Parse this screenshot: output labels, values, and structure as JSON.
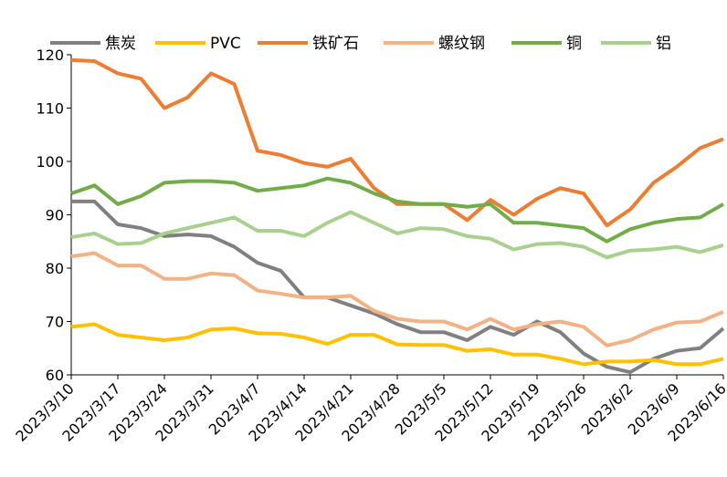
{
  "chart_data": {
    "type": "line",
    "categories": [
      "2023/3/10",
      null,
      "2023/3/17",
      null,
      "2023/3/24",
      null,
      "2023/3/31",
      null,
      "2023/4/7",
      null,
      "2023/4/14",
      null,
      "2023/4/21",
      null,
      "2023/4/28",
      null,
      "2023/5/5",
      null,
      "2023/5/12",
      null,
      "2023/5/19",
      null,
      "2023/5/26",
      null,
      "2023/6/2",
      null,
      "2023/6/9",
      null,
      "2023/6/16"
    ],
    "series": [
      {
        "name": "焦炭",
        "color": "#808080",
        "values": [
          92.5,
          92.5,
          88.2,
          87.5,
          86,
          86.3,
          86,
          84,
          81,
          79.5,
          74.5,
          74.5,
          73,
          71.5,
          69.5,
          68,
          68,
          66.5,
          69,
          67.5,
          70,
          68,
          64,
          61.5,
          60.5,
          63,
          64.5,
          65,
          68.7
        ]
      },
      {
        "name": "PVC",
        "color": "#ffc000",
        "values": [
          69,
          69.5,
          67.5,
          67,
          66.5,
          67,
          68.5,
          68.7,
          67.8,
          67.7,
          67,
          65.8,
          67.5,
          67.5,
          65.7,
          65.6,
          65.6,
          64.5,
          64.8,
          63.8,
          63.8,
          63,
          62,
          62.5,
          62.5,
          62.8,
          62,
          62,
          63
        ]
      },
      {
        "name": "铁矿石",
        "color": "#ed7d31",
        "values": [
          119,
          118.8,
          116.5,
          115.5,
          110,
          112,
          116.5,
          114.5,
          102,
          101.2,
          99.7,
          99,
          100.5,
          95,
          92,
          92,
          92,
          89,
          92.8,
          90,
          93,
          95,
          94,
          88,
          91,
          96,
          99,
          102.5,
          104.2
        ]
      },
      {
        "name": "螺纹钢",
        "color": "#f4b183",
        "values": [
          82.2,
          82.8,
          80.5,
          80.5,
          78,
          78,
          79,
          78.7,
          75.8,
          75.2,
          74.5,
          74.5,
          74.8,
          72,
          70.5,
          70,
          70,
          68.5,
          70.5,
          68.5,
          69.5,
          70,
          69,
          65.5,
          66.5,
          68.5,
          69.8,
          70,
          71.8
        ]
      },
      {
        "name": "铜",
        "color": "#70ad47",
        "values": [
          94,
          95.5,
          92,
          93.5,
          96,
          96.3,
          96.3,
          96,
          94.5,
          95,
          95.5,
          96.8,
          96,
          94,
          92.5,
          92,
          92,
          91.5,
          92,
          88.5,
          88.5,
          88,
          87.5,
          85,
          87.3,
          88.5,
          89.2,
          89.5,
          92
        ]
      },
      {
        "name": "铝",
        "color": "#a9d18e",
        "values": [
          85.8,
          86.5,
          84.5,
          84.7,
          86.5,
          87.5,
          88.5,
          89.5,
          87,
          87,
          86,
          88.5,
          90.5,
          88.5,
          86.5,
          87.5,
          87.3,
          86,
          85.5,
          83.5,
          84.5,
          84.7,
          84,
          82,
          83.3,
          83.5,
          84,
          83,
          84.3
        ]
      }
    ],
    "ylim": [
      60,
      120
    ],
    "yticks": [
      60,
      70,
      80,
      90,
      100,
      110,
      120
    ],
    "grid": false,
    "legend": "top"
  }
}
